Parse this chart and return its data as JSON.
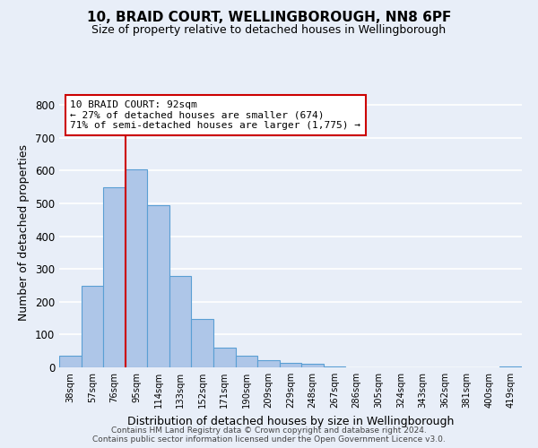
{
  "title": "10, BRAID COURT, WELLINGBOROUGH, NN8 6PF",
  "subtitle": "Size of property relative to detached houses in Wellingborough",
  "xlabel": "Distribution of detached houses by size in Wellingborough",
  "ylabel": "Number of detached properties",
  "bin_labels": [
    "38sqm",
    "57sqm",
    "76sqm",
    "95sqm",
    "114sqm",
    "133sqm",
    "152sqm",
    "171sqm",
    "190sqm",
    "209sqm",
    "229sqm",
    "248sqm",
    "267sqm",
    "286sqm",
    "305sqm",
    "324sqm",
    "343sqm",
    "362sqm",
    "381sqm",
    "400sqm",
    "419sqm"
  ],
  "bar_values": [
    35,
    250,
    550,
    605,
    495,
    278,
    148,
    60,
    35,
    22,
    15,
    10,
    2,
    1,
    1,
    0,
    0,
    0,
    0,
    0,
    2
  ],
  "bar_color": "#aec6e8",
  "bar_edge_color": "#5a9fd4",
  "property_line_color": "#cc0000",
  "property_line_bin_index": 3,
  "annotation_line1": "10 BRAID COURT: 92sqm",
  "annotation_line2": "← 27% of detached houses are smaller (674)",
  "annotation_line3": "71% of semi-detached houses are larger (1,775) →",
  "annotation_box_color": "#ffffff",
  "annotation_box_edge_color": "#cc0000",
  "ylim": [
    0,
    820
  ],
  "yticks": [
    0,
    100,
    200,
    300,
    400,
    500,
    600,
    700,
    800
  ],
  "footer_line1": "Contains HM Land Registry data © Crown copyright and database right 2024.",
  "footer_line2": "Contains public sector information licensed under the Open Government Licence v3.0.",
  "background_color": "#e8eef8"
}
